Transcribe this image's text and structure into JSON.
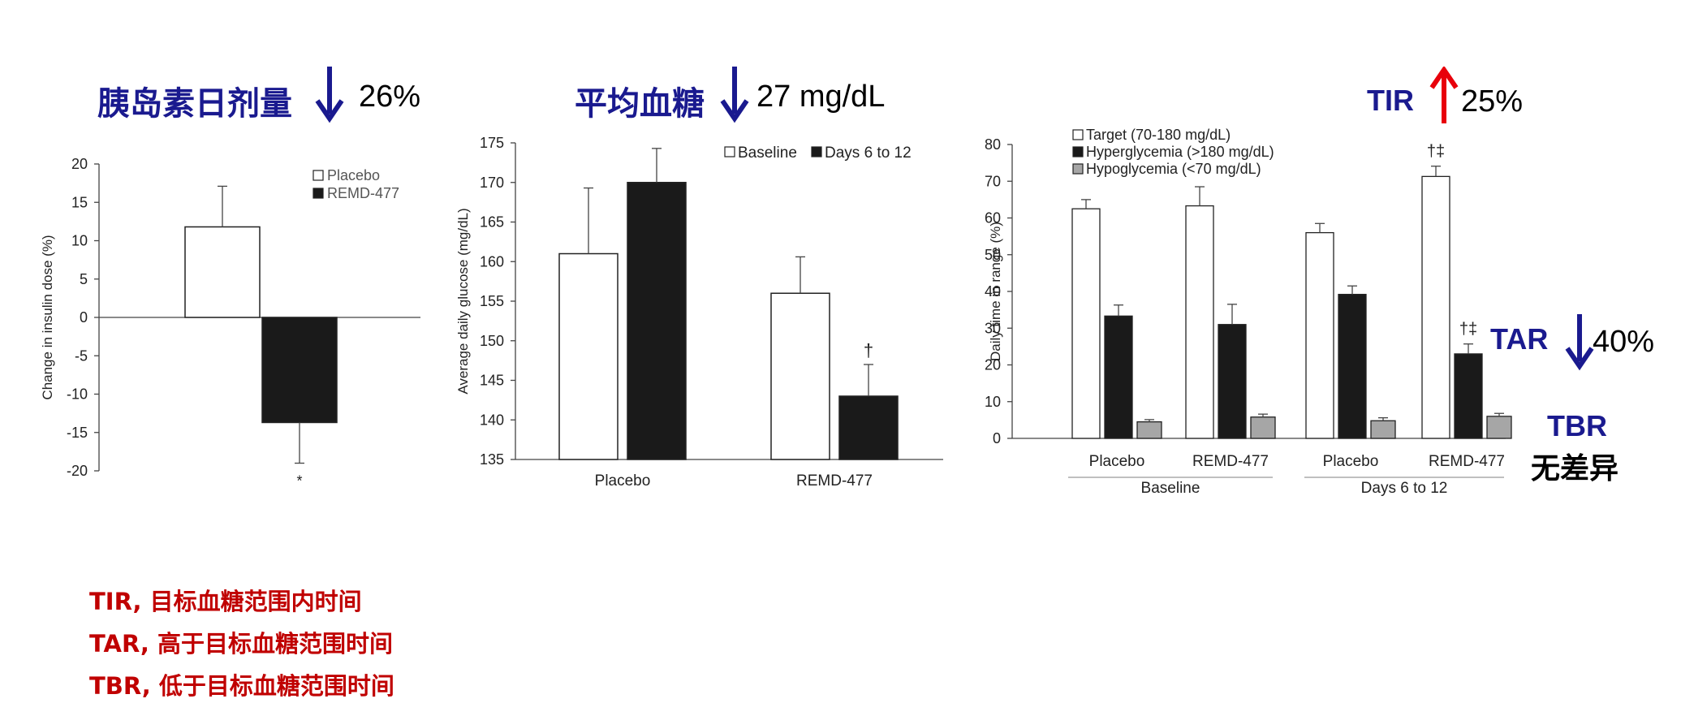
{
  "headlines": {
    "insulin": {
      "label": "胰岛素日剂量",
      "value": "26%"
    },
    "glucose": {
      "label": "平均血糖",
      "value": "27 mg/dL"
    },
    "tir": {
      "label": "TIR",
      "value": "25%"
    },
    "tar": {
      "label": "TAR",
      "value": "40%"
    },
    "tbr": {
      "label": "TBR",
      "note": "无差异"
    }
  },
  "colors": {
    "headline_blue": "#1a1a8f",
    "arrow_blue": "#1a1a8f",
    "arrow_red": "#e8000b",
    "legend_red": "#c00000",
    "bar_white": "#ffffff",
    "bar_black": "#1a1a1a",
    "bar_gray": "#a6a6a6"
  },
  "footnotes": [
    {
      "abbr": "TIR,",
      "text": " 目标血糖范围内时间"
    },
    {
      "abbr": "TAR,",
      "text": " 高于目标血糖范围时间"
    },
    {
      "abbr": "TBR,",
      "text": " 低于目标血糖范围时间"
    }
  ],
  "chart_data": [
    {
      "type": "bar",
      "ylabel": "Change in insulin dose (%)",
      "ylim": [
        -20,
        20
      ],
      "yticks": [
        "20",
        "15",
        "10",
        "5",
        "0",
        "-5",
        "-10",
        "-15",
        "-20"
      ],
      "series": [
        {
          "name": "Placebo",
          "value": 11.8,
          "error": 5.3,
          "fill": "white"
        },
        {
          "name": "REMD-477",
          "value": -13.7,
          "error": 5.3,
          "fill": "black",
          "marker": "*"
        }
      ],
      "legend": [
        "Placebo",
        "REMD-477"
      ]
    },
    {
      "type": "bar",
      "ylabel": "Average daily glucose (mg/dL)",
      "ylim": [
        135,
        175
      ],
      "yticks": [
        "175",
        "170",
        "165",
        "160",
        "155",
        "150",
        "145",
        "140",
        "135"
      ],
      "categories": [
        "Placebo",
        "REMD-477"
      ],
      "series": [
        {
          "name": "Baseline",
          "values": [
            161,
            156
          ],
          "errors": [
            8.3,
            4.6
          ]
        },
        {
          "name": "Days 6 to 12",
          "values": [
            170,
            143
          ],
          "errors": [
            4.3,
            4
          ]
        }
      ],
      "markers": [
        {
          "category": "REMD-477",
          "series": "Days 6 to 12",
          "text": "†"
        }
      ],
      "legend": [
        "Baseline",
        "Days 6 to 12"
      ]
    },
    {
      "type": "bar",
      "ylabel": "Daily time in range (%)",
      "ylim": [
        0,
        80
      ],
      "yticks": [
        "80",
        "70",
        "60",
        "50",
        "40",
        "30",
        "20",
        "10",
        "0"
      ],
      "categories": [
        "Placebo",
        "REMD-477",
        "Placebo",
        "REMD-477"
      ],
      "groups": [
        {
          "label": "Baseline",
          "categories": [
            0,
            1
          ]
        },
        {
          "label": "Days 6 to 12",
          "categories": [
            2,
            3
          ]
        }
      ],
      "series": [
        {
          "name": "Target (70-180 mg/dL)",
          "values": [
            62.5,
            63.3,
            56,
            71.3
          ],
          "errors": [
            2.5,
            5.2,
            2.5,
            2.8
          ]
        },
        {
          "name": "Hyperglycemia (>180 mg/dL)",
          "values": [
            33.3,
            31,
            39.2,
            23
          ],
          "errors": [
            3,
            5.5,
            2.3,
            2.7
          ]
        },
        {
          "name": "Hypoglycemia (<70 mg/dL)",
          "values": [
            4.5,
            5.8,
            4.8,
            6
          ],
          "errors": [
            0.6,
            0.8,
            0.8,
            0.8
          ]
        }
      ],
      "markers": [
        {
          "category": 3,
          "series": "Target (70-180 mg/dL)",
          "text": "†‡"
        },
        {
          "category": 3,
          "series": "Hyperglycemia (>180 mg/dL)",
          "text": "†‡"
        }
      ],
      "legend": [
        "Target (70-180 mg/dL)",
        "Hyperglycemia (>180 mg/dL)",
        "Hypoglycemia (<70 mg/dL)"
      ]
    }
  ]
}
